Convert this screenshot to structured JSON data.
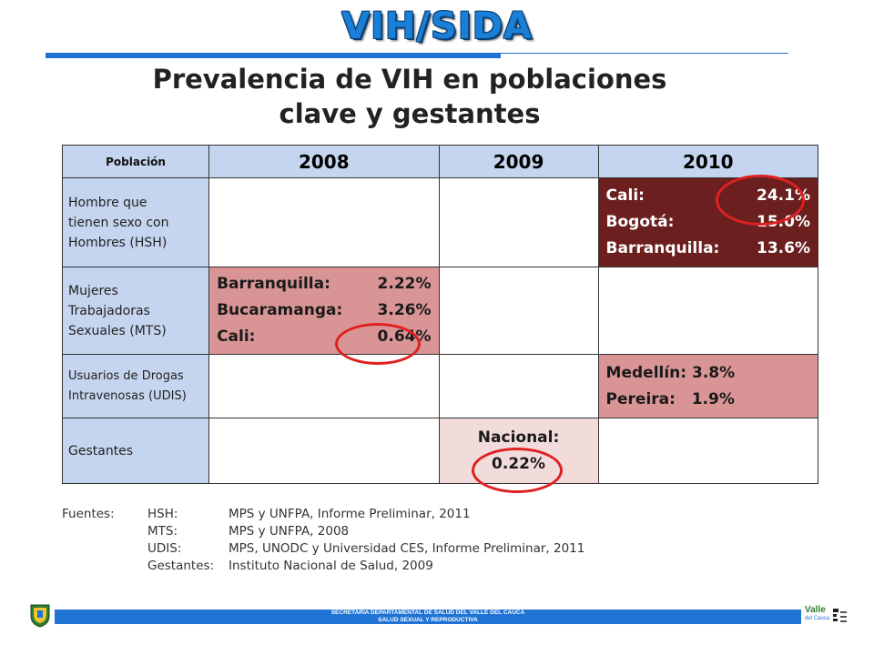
{
  "header": {
    "banner": "VIH/SIDA",
    "title_line1": "Prevalencia  de VIH en poblaciones",
    "title_line2": "clave y gestantes"
  },
  "table": {
    "headers": [
      "Población",
      "2008",
      "2009",
      "2010"
    ],
    "rows": [
      {
        "label_lines": [
          "Hombre que",
          "tienen sexo con",
          "Hombres (HSH)"
        ],
        "c2010": [
          {
            "name": "Cali:",
            "value": "24.1%"
          },
          {
            "name": "Bogotá:",
            "value": "15.0%"
          },
          {
            "name": "Barranquilla:",
            "value": "13.6%"
          }
        ]
      },
      {
        "label_lines": [
          "Mujeres",
          "Trabajadoras",
          "Sexuales (MTS)"
        ],
        "c2008": [
          {
            "name": "Barranquilla:",
            "value": "2.22%"
          },
          {
            "name": "Bucaramanga:",
            "value": "3.26%"
          },
          {
            "name": "Cali:",
            "value": "0.64%"
          }
        ]
      },
      {
        "label_lines": [
          "Usuarios de Drogas",
          "Intravenosas (UDIS)"
        ],
        "c2010": [
          {
            "name": "Medellín:",
            "value": "3.8%"
          },
          {
            "name": "Pereira:",
            "value": "1.9%"
          }
        ]
      },
      {
        "label_lines": [
          "Gestantes"
        ],
        "c2009": {
          "name": "Nacional:",
          "value": "0.22%"
        }
      }
    ]
  },
  "sources": {
    "label": "Fuentes:",
    "items": [
      {
        "key": "HSH:",
        "text": "MPS y UNFPA, Informe Preliminar, 2011"
      },
      {
        "key": "MTS:",
        "text": "MPS y UNFPA, 2008"
      },
      {
        "key": "UDIS:",
        "text": "MPS, UNODC y Universidad CES, Informe Preliminar, 2011"
      },
      {
        "key": "Gestantes:",
        "text": "Instituto Nacional de Salud, 2009"
      }
    ]
  },
  "footer": {
    "line1": "SECRETARIA DEPARTAMENTAL DE SALUD DEL VALLE DEL CAUCA",
    "line2": "SALUD SEXUAL Y REPRODUCTIVA",
    "logo_right_text": "Valle",
    "logo_right_sub": "del Cauca"
  },
  "colors": {
    "accent": "#1e73d4",
    "header_cell": "#c6d5ef",
    "dark_cell": "#6b1f1f",
    "pink_cell": "#d99595",
    "light_pink_cell": "#f2dcdb",
    "highlight_circle": "#e02020"
  }
}
